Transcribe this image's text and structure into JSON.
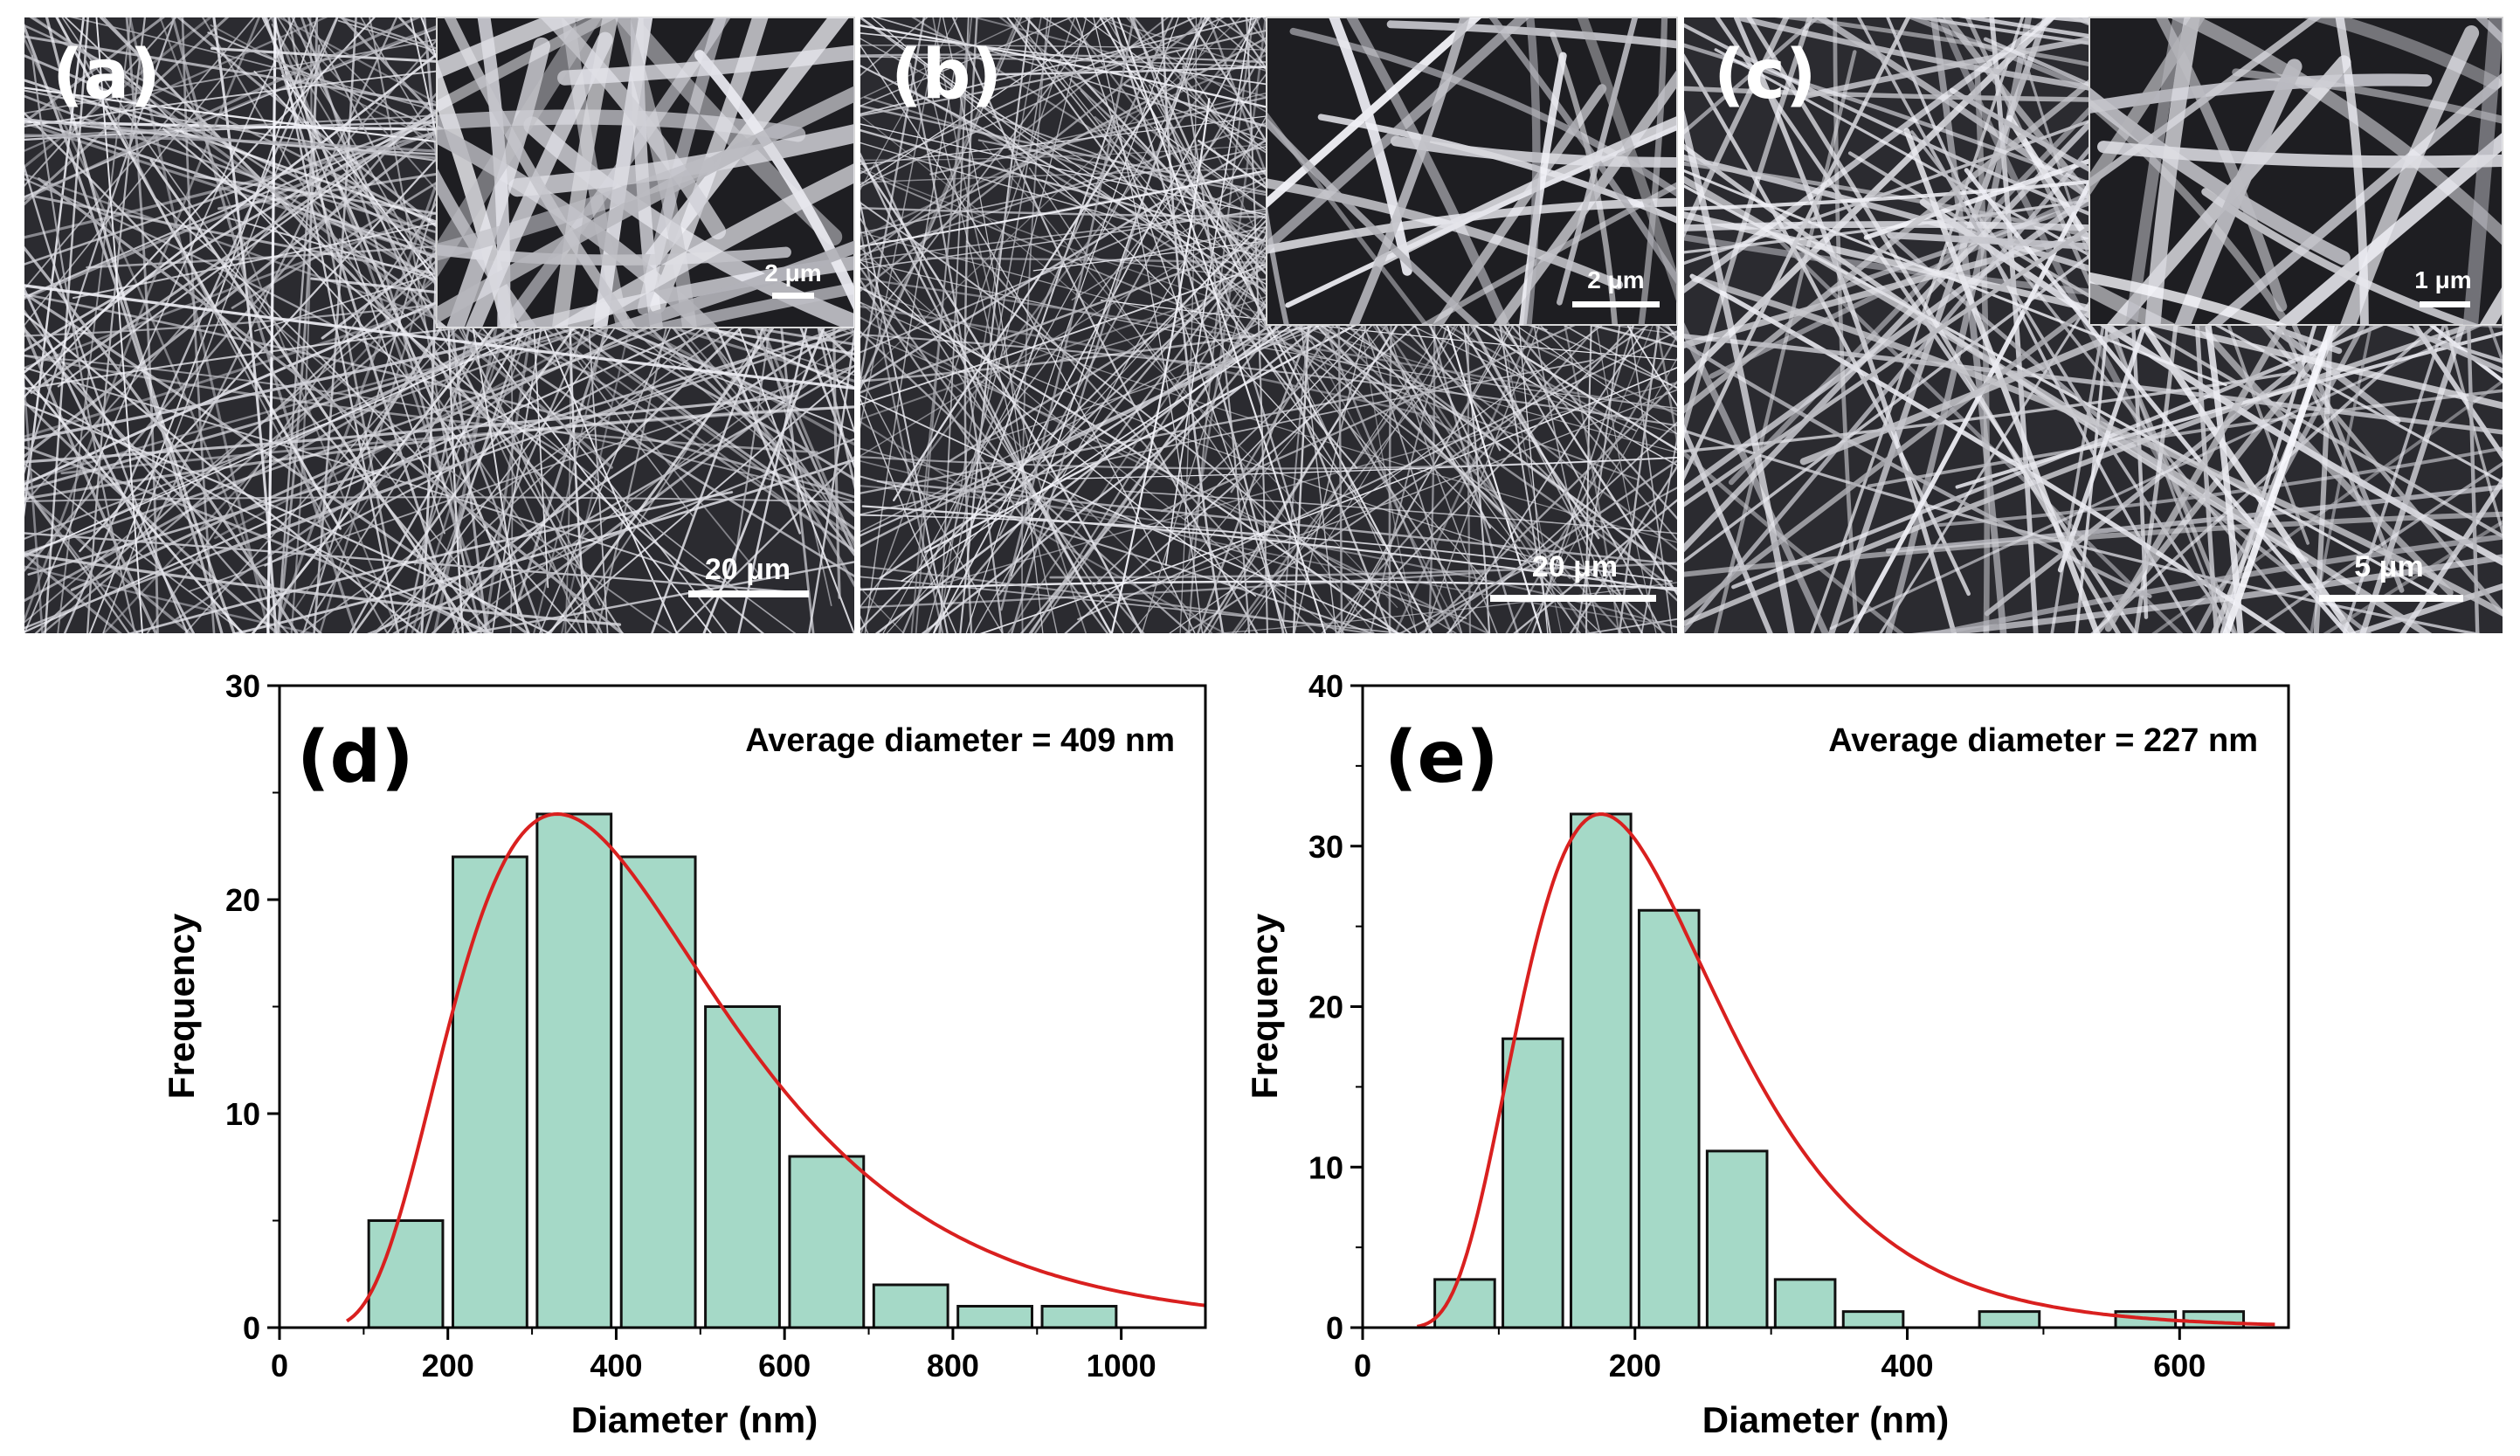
{
  "colors": {
    "bar_fill": "#a5d9c7",
    "bar_stroke": "#111111",
    "fit_curve": "#d9201f",
    "sem_dark": "#26262b",
    "sem_fiber": "#e6e6ea"
  },
  "sem_panels": [
    {
      "label": "(a)",
      "main_scale": "20 μm",
      "inset_scale": "2 μm"
    },
    {
      "label": "(b)",
      "main_scale": "20 μm",
      "inset_scale": "2 μm"
    },
    {
      "label": "(c)",
      "main_scale": "5 μm",
      "inset_scale": "1 μm"
    }
  ],
  "chart_data": [
    {
      "type": "bar",
      "panel_label": "(d)",
      "annotation": "Average diameter = 409 nm",
      "xlabel": "Diameter (nm)",
      "ylabel": "Frequency",
      "xlim": [
        0,
        1100
      ],
      "ylim": [
        0,
        30
      ],
      "xticks": [
        0,
        200,
        400,
        600,
        800,
        1000
      ],
      "yticks": [
        0,
        10,
        20,
        30
      ],
      "bin_width": 100,
      "bin_centers": [
        150,
        250,
        350,
        450,
        550,
        650,
        750,
        850,
        950
      ],
      "values": [
        5,
        22,
        24,
        22,
        15,
        8,
        2,
        1,
        1
      ],
      "fit": {
        "type": "lognormal",
        "mode": 330,
        "peak": 24,
        "sigma": 0.48,
        "x_range": [
          80,
          1100
        ]
      }
    },
    {
      "type": "bar",
      "panel_label": "(e)",
      "annotation": "Average diameter = 227 nm",
      "xlabel": "Diameter (nm)",
      "ylabel": "Frequency",
      "xlim": [
        0,
        680
      ],
      "ylim": [
        0,
        40
      ],
      "xticks": [
        0,
        200,
        400,
        600
      ],
      "yticks": [
        0,
        10,
        20,
        30,
        40
      ],
      "bin_width": 50,
      "bin_centers": [
        75,
        125,
        175,
        225,
        275,
        325,
        375,
        425,
        475,
        525,
        575,
        625
      ],
      "values": [
        3,
        18,
        32,
        26,
        11,
        3,
        1,
        0,
        1,
        0,
        1,
        1
      ],
      "fit": {
        "type": "lognormal",
        "mode": 175,
        "peak": 32,
        "sigma": 0.42,
        "x_range": [
          40,
          670
        ]
      }
    }
  ]
}
